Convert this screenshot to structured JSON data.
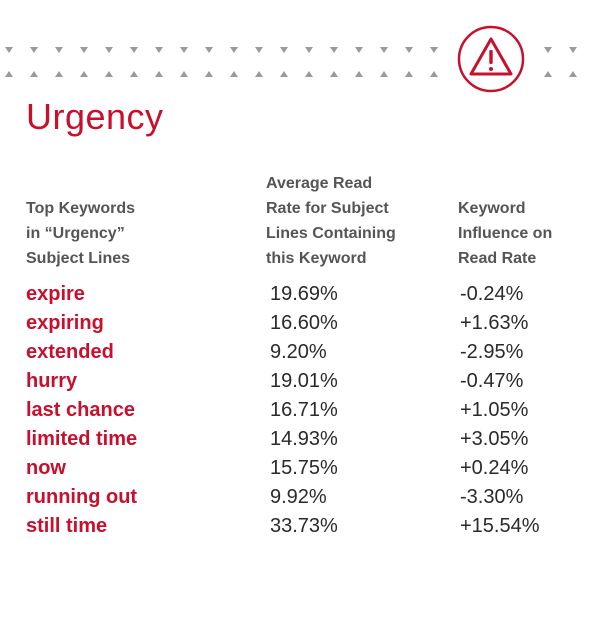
{
  "title": "Urgency",
  "headers": {
    "keyword": "Top Keywords\nin “Urgency”\nSubject Lines",
    "avg_read_rate": "Average Read\nRate for Subject\nLines Containing\nthis Keyword",
    "influence": "Keyword\nInfluence on\nRead Rate"
  },
  "rows": [
    {
      "keyword": "expire",
      "avg": "19.69%",
      "influence": "-0.24%"
    },
    {
      "keyword": "expiring",
      "avg": "16.60%",
      "influence": "+1.63%"
    },
    {
      "keyword": "extended",
      "avg": "9.20%",
      "influence": "-2.95%"
    },
    {
      "keyword": "hurry",
      "avg": "19.01%",
      "influence": "-0.47%"
    },
    {
      "keyword": "last chance",
      "avg": "16.71%",
      "influence": "+1.05%"
    },
    {
      "keyword": "limited time",
      "avg": "14.93%",
      "influence": "+3.05%"
    },
    {
      "keyword": "now",
      "avg": "15.75%",
      "influence": "+0.24%"
    },
    {
      "keyword": "running out",
      "avg": "9.92%",
      "influence": "-3.30%"
    },
    {
      "keyword": "still time",
      "avg": "33.73%",
      "influence": "+15.54%"
    }
  ],
  "colors": {
    "accent": "#c8102e",
    "text": "#2a2a2a",
    "header_text": "#555555",
    "tick": "#9a9a9a"
  },
  "icons": {
    "badge": "warning-icon"
  }
}
